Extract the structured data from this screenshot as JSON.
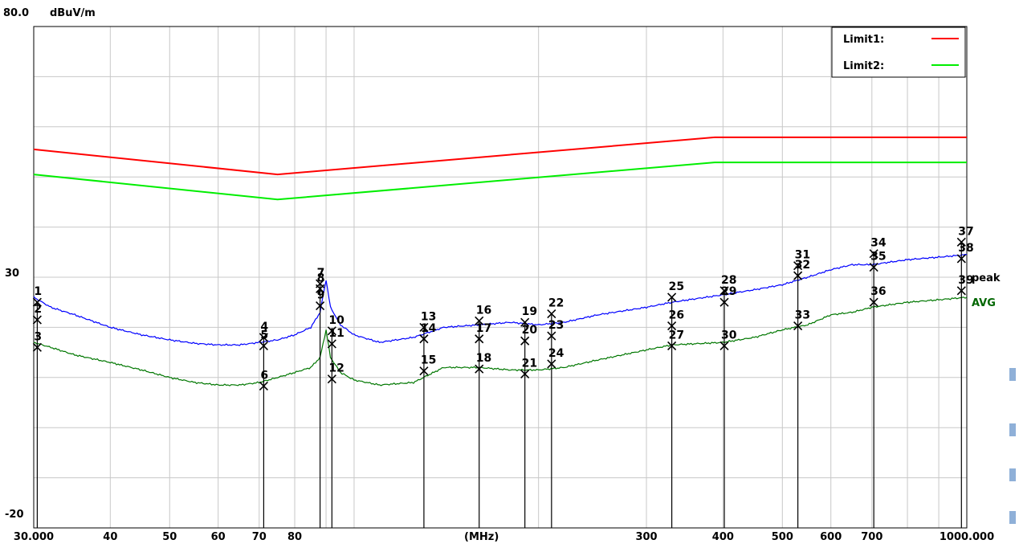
{
  "chart_data": {
    "type": "line",
    "title": "",
    "x_scale": "log",
    "xlim": [
      30,
      1000
    ],
    "ylim": [
      -20,
      80
    ],
    "y_unit_label": "dBuV/m",
    "x_unit_label": "(MHz)",
    "y_tick_labels": [
      {
        "value": 80,
        "label": "80.0"
      },
      {
        "value": 30,
        "label": "30"
      },
      {
        "value": -20,
        "label": "-20"
      }
    ],
    "x_tick_labels": [
      {
        "value": 30,
        "label": "30.000"
      },
      {
        "value": 40,
        "label": "40"
      },
      {
        "value": 50,
        "label": "50"
      },
      {
        "value": 60,
        "label": "60"
      },
      {
        "value": 70,
        "label": "70"
      },
      {
        "value": 80,
        "label": "80"
      },
      {
        "value": 300,
        "label": "300"
      },
      {
        "value": 400,
        "label": "400"
      },
      {
        "value": 500,
        "label": "500"
      },
      {
        "value": 600,
        "label": "600"
      },
      {
        "value": 700,
        "label": "700"
      },
      {
        "value": 1000,
        "label": "1000.000"
      }
    ],
    "grid": true,
    "legend_position": "top-right",
    "legend": [
      {
        "name": "Limit1:",
        "color": "#ff0000"
      },
      {
        "name": "Limit2:",
        "color": "#00ee00"
      }
    ],
    "limit_series": [
      {
        "name": "Limit1",
        "color": "#ff0000",
        "points": [
          [
            30,
            55.5
          ],
          [
            75,
            50.5
          ],
          [
            388,
            57.9
          ],
          [
            1000,
            57.9
          ]
        ]
      },
      {
        "name": "Limit2",
        "color": "#00ee00",
        "points": [
          [
            30,
            50.5
          ],
          [
            75,
            45.5
          ],
          [
            388,
            52.9
          ],
          [
            1000,
            52.9
          ]
        ]
      }
    ],
    "series": [
      {
        "name": "peak",
        "color": "#0000ff",
        "points": [
          [
            30,
            26.0
          ],
          [
            32,
            24.0
          ],
          [
            35,
            22.5
          ],
          [
            40,
            20.0
          ],
          [
            45,
            18.5
          ],
          [
            50,
            17.5
          ],
          [
            55,
            16.8
          ],
          [
            60,
            16.5
          ],
          [
            65,
            16.5
          ],
          [
            70,
            17.0
          ],
          [
            75,
            17.5
          ],
          [
            80,
            18.5
          ],
          [
            85,
            20.0
          ],
          [
            88,
            23.0
          ],
          [
            90,
            29.5
          ],
          [
            91.5,
            24.0
          ],
          [
            95,
            20.5
          ],
          [
            100,
            18.5
          ],
          [
            110,
            17.0
          ],
          [
            125,
            18.0
          ],
          [
            140,
            20.0
          ],
          [
            160,
            20.5
          ],
          [
            180,
            21.0
          ],
          [
            200,
            20.5
          ],
          [
            220,
            21.0
          ],
          [
            250,
            22.5
          ],
          [
            300,
            24.0
          ],
          [
            330,
            25.0
          ],
          [
            400,
            26.5
          ],
          [
            450,
            27.5
          ],
          [
            500,
            28.5
          ],
          [
            550,
            30.0
          ],
          [
            600,
            31.5
          ],
          [
            650,
            32.5
          ],
          [
            700,
            32.5
          ],
          [
            800,
            33.5
          ],
          [
            900,
            34.0
          ],
          [
            1000,
            34.5
          ]
        ]
      },
      {
        "name": "AVG",
        "color": "#007700",
        "points": [
          [
            30,
            17.0
          ],
          [
            32,
            16.0
          ],
          [
            35,
            14.5
          ],
          [
            40,
            13.0
          ],
          [
            45,
            11.5
          ],
          [
            50,
            10.0
          ],
          [
            55,
            9.0
          ],
          [
            60,
            8.5
          ],
          [
            65,
            8.5
          ],
          [
            70,
            9.0
          ],
          [
            75,
            10.0
          ],
          [
            80,
            11.0
          ],
          [
            85,
            12.0
          ],
          [
            88,
            14.0
          ],
          [
            90,
            19.5
          ],
          [
            91.5,
            14.0
          ],
          [
            95,
            11.0
          ],
          [
            100,
            9.5
          ],
          [
            110,
            8.5
          ],
          [
            125,
            9.0
          ],
          [
            140,
            12.0
          ],
          [
            160,
            12.0
          ],
          [
            180,
            11.5
          ],
          [
            200,
            11.5
          ],
          [
            220,
            12.0
          ],
          [
            250,
            13.5
          ],
          [
            300,
            15.5
          ],
          [
            330,
            16.5
          ],
          [
            400,
            17.0
          ],
          [
            450,
            18.0
          ],
          [
            500,
            19.5
          ],
          [
            550,
            20.5
          ],
          [
            600,
            22.5
          ],
          [
            650,
            23.0
          ],
          [
            700,
            24.0
          ],
          [
            800,
            25.0
          ],
          [
            900,
            25.5
          ],
          [
            1000,
            26.0
          ]
        ]
      }
    ],
    "series_labels": [
      {
        "text": "peak",
        "color": "#000000",
        "x": 1000,
        "y": 30.0
      },
      {
        "text": "AVG",
        "color": "#006600",
        "x": 1000,
        "y": 25.0
      }
    ],
    "markers": [
      {
        "n": 1,
        "x": 30.4,
        "y": 25.0
      },
      {
        "n": 2,
        "x": 30.4,
        "y": 21.5
      },
      {
        "n": 3,
        "x": 30.4,
        "y": 16.0
      },
      {
        "n": 4,
        "x": 71.2,
        "y": 18.0
      },
      {
        "n": 5,
        "x": 71.2,
        "y": 16.3
      },
      {
        "n": 6,
        "x": 71.2,
        "y": 8.3
      },
      {
        "n": 7,
        "x": 88.0,
        "y": 28.7
      },
      {
        "n": 8,
        "x": 88.0,
        "y": 27.7
      },
      {
        "n": 9,
        "x": 88.0,
        "y": 24.3
      },
      {
        "n": 10,
        "x": 92.0,
        "y": 19.3
      },
      {
        "n": 11,
        "x": 92.0,
        "y": 16.7
      },
      {
        "n": 12,
        "x": 92.0,
        "y": 9.7
      },
      {
        "n": 13,
        "x": 130.0,
        "y": 20.0
      },
      {
        "n": 14,
        "x": 130.0,
        "y": 17.7
      },
      {
        "n": 15,
        "x": 130.0,
        "y": 11.3
      },
      {
        "n": 16,
        "x": 160.0,
        "y": 21.3
      },
      {
        "n": 17,
        "x": 160.0,
        "y": 17.7
      },
      {
        "n": 18,
        "x": 160.0,
        "y": 11.7
      },
      {
        "n": 19,
        "x": 190.0,
        "y": 21.0
      },
      {
        "n": 20,
        "x": 190.0,
        "y": 17.3
      },
      {
        "n": 21,
        "x": 190.0,
        "y": 10.7
      },
      {
        "n": 22,
        "x": 210.0,
        "y": 22.7
      },
      {
        "n": 23,
        "x": 210.0,
        "y": 18.3
      },
      {
        "n": 24,
        "x": 210.0,
        "y": 12.7
      },
      {
        "n": 25,
        "x": 330.0,
        "y": 26.0
      },
      {
        "n": 26,
        "x": 330.0,
        "y": 20.3
      },
      {
        "n": 27,
        "x": 330.0,
        "y": 16.3
      },
      {
        "n": 28,
        "x": 402.0,
        "y": 27.3
      },
      {
        "n": 29,
        "x": 402.0,
        "y": 25.0
      },
      {
        "n": 30,
        "x": 402.0,
        "y": 16.3
      },
      {
        "n": 31,
        "x": 530.0,
        "y": 32.3
      },
      {
        "n": 32,
        "x": 530.0,
        "y": 30.3
      },
      {
        "n": 33,
        "x": 530.0,
        "y": 20.3
      },
      {
        "n": 34,
        "x": 705.0,
        "y": 34.7
      },
      {
        "n": 35,
        "x": 705.0,
        "y": 32.0
      },
      {
        "n": 36,
        "x": 705.0,
        "y": 25.0
      },
      {
        "n": 37,
        "x": 980.0,
        "y": 37.0
      },
      {
        "n": 38,
        "x": 980.0,
        "y": 33.7
      },
      {
        "n": 39,
        "x": 980.0,
        "y": 27.3
      }
    ]
  }
}
